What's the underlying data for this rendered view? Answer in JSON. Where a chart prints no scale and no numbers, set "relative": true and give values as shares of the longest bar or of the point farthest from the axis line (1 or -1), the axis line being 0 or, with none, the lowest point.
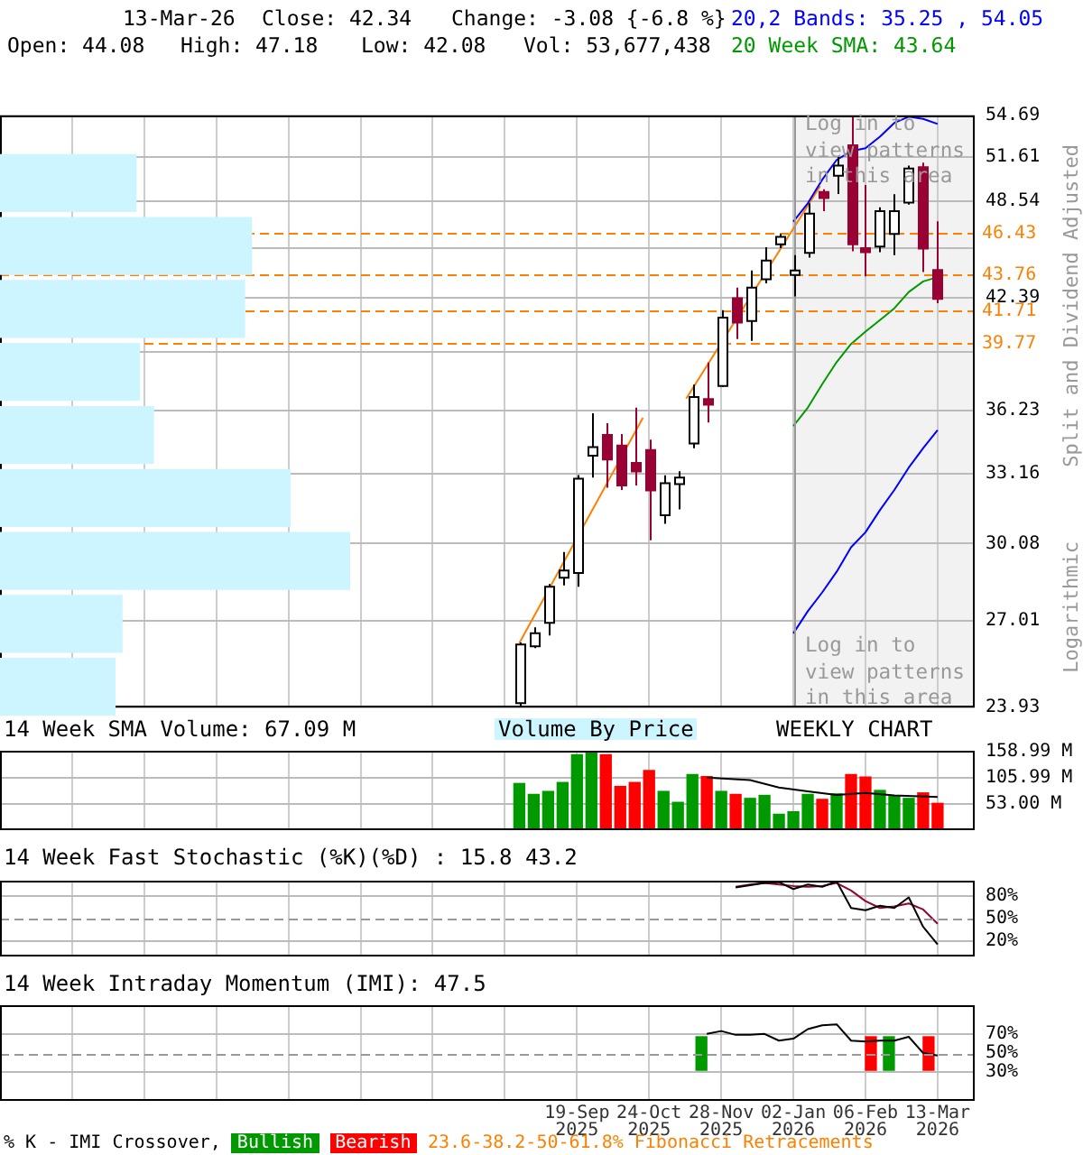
{
  "chart_data": [
    {
      "type": "candlestick",
      "ylabel": "Split and Dividend Adjusted",
      "annotations": [
        "13-Mar-26",
        "Close: 42.34",
        "Change: -3.08 {-6.8 %}",
        "Open: 44.08",
        "High: 47.18",
        "Low: 42.08",
        "Vol: 53,677,438",
        "WEEKLY CHART",
        "Log in to view patterns in this area",
        "Log in to view patterns in this area",
        "Logarithmic",
        "23.6-38.2-50-61.8% Fibonacci Retracements",
        "Volume By Price"
      ],
      "x": [
        "2025-08-22",
        "2025-08-29",
        "2025-09-05",
        "2025-09-12",
        "2025-09-19",
        "2025-09-26",
        "2025-10-03",
        "2025-10-10",
        "2025-10-17",
        "2025-10-24",
        "2025-10-31",
        "2025-11-07",
        "2025-11-14",
        "2025-11-21",
        "2025-11-28",
        "2025-12-05",
        "2025-12-12",
        "2025-12-19",
        "2025-12-26",
        "2026-01-02",
        "2026-01-09",
        "2026-01-16",
        "2026-01-23",
        "2026-01-30",
        "2026-02-06",
        "2026-02-13",
        "2026-02-20",
        "2026-02-27",
        "2026-03-06",
        "2026-03-13"
      ],
      "ohlc": [
        [
          24.07,
          26.2,
          23.95,
          26.13
        ],
        [
          26.06,
          26.76,
          26.0,
          26.54
        ],
        [
          26.93,
          28.43,
          26.46,
          28.32
        ],
        [
          28.68,
          29.73,
          28.38,
          28.97
        ],
        [
          28.87,
          33.1,
          28.32,
          32.94
        ],
        [
          34.01,
          36.08,
          32.99,
          34.42
        ],
        [
          35.01,
          35.59,
          32.52,
          33.83
        ],
        [
          34.5,
          35.05,
          32.42,
          32.63
        ],
        [
          33.67,
          36.37,
          32.63,
          33.27
        ],
        [
          34.28,
          34.78,
          30.22,
          32.4
        ],
        [
          31.3,
          33.09,
          30.92,
          32.73
        ],
        [
          32.69,
          33.28,
          31.55,
          32.99
        ],
        [
          34.59,
          37.56,
          34.37,
          36.91
        ],
        [
          36.81,
          38.73,
          35.62,
          36.52
        ],
        [
          37.49,
          41.67,
          37.44,
          41.24
        ],
        [
          42.37,
          43.0,
          40.03,
          40.96
        ],
        [
          41.05,
          44.05,
          39.93,
          43.0
        ],
        [
          43.51,
          45.5,
          43.27,
          44.66
        ],
        [
          45.69,
          46.35,
          45.44,
          46.16
        ],
        [
          43.77,
          45.0,
          42.48,
          44.05
        ],
        [
          45.15,
          48.38,
          44.85,
          47.68
        ],
        [
          49.15,
          49.33,
          47.85,
          48.73
        ],
        [
          50.28,
          51.61,
          49.01,
          50.99
        ],
        [
          52.46,
          54.63,
          45.24,
          45.69
        ],
        [
          45.44,
          49.64,
          43.69,
          45.19
        ],
        [
          45.55,
          48.11,
          45.19,
          47.85
        ],
        [
          46.35,
          49.0,
          45.0,
          47.85
        ],
        [
          48.43,
          50.99,
          48.29,
          50.78
        ],
        [
          50.88,
          51.2,
          43.95,
          45.42
        ],
        [
          44.08,
          47.18,
          42.08,
          42.34
        ]
      ],
      "series": [
        {
          "type": "line",
          "name": "20,2 Bands: 35.25 , 54.05",
          "color": "#0000ff",
          "values": [
            null,
            null,
            null,
            null,
            null,
            null,
            null,
            null,
            null,
            null,
            null,
            null,
            null,
            null,
            null,
            null,
            null,
            null,
            null,
            47.16,
            48.38,
            50.0,
            51.4,
            52.03,
            52.25,
            53.1,
            54.13,
            54.6,
            54.43,
            54.05
          ]
        },
        {
          "type": "line",
          "color": "#0000ff",
          "values": [
            null,
            null,
            null,
            null,
            null,
            null,
            null,
            null,
            null,
            null,
            null,
            null,
            null,
            null,
            null,
            null,
            null,
            null,
            null,
            26.54,
            27.37,
            28.1,
            28.92,
            29.93,
            30.56,
            31.52,
            32.42,
            33.45,
            34.37,
            35.25
          ]
        },
        {
          "type": "line",
          "name": "20 Week SMA: 43.64",
          "color": "#009900",
          "values": [
            null,
            null,
            null,
            null,
            null,
            null,
            null,
            null,
            null,
            null,
            null,
            null,
            null,
            null,
            null,
            null,
            null,
            null,
            null,
            35.45,
            36.37,
            37.58,
            38.76,
            39.75,
            40.44,
            41.1,
            41.78,
            42.74,
            43.38,
            43.64
          ]
        },
        {
          "type": "line",
          "color": "#ff8000",
          "x": [
            "2025-08-22",
            "2025-10-21"
          ],
          "values": [
            26.18,
            35.86
          ]
        },
        {
          "type": "line",
          "color": "#ff8000",
          "x": [
            "2025-11-11",
            "2026-01-15"
          ],
          "values": [
            36.83,
            49.56
          ]
        }
      ],
      "xlim": [
        "2024-12-13",
        "2026-03-31"
      ],
      "xticks": [
        {
          "value": "2025-01-17",
          "label": null
        },
        {
          "value": "2025-02-21",
          "label": null
        },
        {
          "value": "2025-03-28",
          "label": null
        },
        {
          "value": "2025-05-02",
          "label": null
        },
        {
          "value": "2025-06-06",
          "label": null
        },
        {
          "value": "2025-07-11",
          "label": null
        },
        {
          "value": "2025-08-15",
          "label": null
        },
        {
          "value": "2025-09-19",
          "label": null
        },
        {
          "value": "2025-10-24",
          "label": null
        },
        {
          "value": "2025-11-28",
          "label": null
        },
        {
          "value": "2026-01-02",
          "label": null
        },
        {
          "value": "2026-02-06",
          "label": null
        },
        {
          "value": "2026-03-13",
          "label": null
        }
      ],
      "ylim": [
        23.93,
        54.69
      ],
      "yticks": [
        23.93,
        27.01,
        30.08,
        33.16,
        36.23,
        {
          "value": 39.31,
          "label": null
        },
        42.39,
        {
          "value": 45.46,
          "label": null
        },
        48.54,
        51.61,
        54.69
      ],
      "log": true,
      "grid": true,
      "tick_labels": "y",
      "legend": "top right",
      "ref_lines": [
        {
          "axis": "y",
          "value": 46.43,
          "label": "46.43",
          "color": "#ff8000",
          "line_style": "dashed"
        },
        {
          "axis": "y",
          "value": 43.76,
          "label": "43.76",
          "color": "#ff8000",
          "line_style": "dashed"
        },
        {
          "axis": "y",
          "value": 41.71,
          "label": "41.71",
          "color": "#ff8000",
          "line_style": "dashed"
        },
        {
          "axis": "y",
          "value": 39.77,
          "label": "39.77",
          "color": "#ff8000",
          "line_style": "dashed"
        },
        {
          "axis": "x",
          "value": "2026-01-02",
          "color": "#999999",
          "line_style": "solid"
        }
      ],
      "bands": [
        {
          "axis": "x",
          "from": "2026-01-02",
          "to": "2026-03-31",
          "color": "#f2f2f2"
        }
      ]
    },
    {
      "type": "bar",
      "orientation": "horizontal",
      "relative": true,
      "categories": [
        null,
        null,
        null,
        null,
        null,
        null,
        null,
        null,
        null
      ],
      "values": [
        0.39,
        0.72,
        0.7,
        0.4,
        0.44,
        0.83,
        1,
        0.35,
        0.33
      ],
      "color": "#ccf5ff"
    },
    {
      "type": "bar",
      "title": "14 Week SMA Volume: 67.09 M",
      "x": [
        "2025-08-22",
        "2025-08-29",
        "2025-09-05",
        "2025-09-12",
        "2025-09-19",
        "2025-09-26",
        "2025-10-03",
        "2025-10-10",
        "2025-10-17",
        "2025-10-24",
        "2025-10-31",
        "2025-11-07",
        "2025-11-14",
        "2025-11-21",
        "2025-11-28",
        "2025-12-05",
        "2025-12-12",
        "2025-12-19",
        "2025-12-26",
        "2026-01-02",
        "2026-01-09",
        "2026-01-16",
        "2026-01-23",
        "2026-01-30",
        "2026-02-06",
        "2026-02-13",
        "2026-02-20",
        "2026-02-27",
        "2026-03-06",
        "2026-03-13"
      ],
      "series": [
        {
          "type": "bar",
          "colors": [
            "#009900",
            "#009900",
            "#009900",
            "#009900",
            "#009900",
            "#009900",
            "#ff0000",
            "#ff0000",
            "#ff0000",
            "#ff0000",
            "#009900",
            "#009900",
            "#009900",
            "#ff0000",
            "#009900",
            "#ff0000",
            "#009900",
            "#009900",
            "#009900",
            "#009900",
            "#009900",
            "#ff0000",
            "#009900",
            "#ff0000",
            "#ff0000",
            "#009900",
            "#009900",
            "#009900",
            "#ff0000",
            "#ff0000"
          ],
          "values": [
            94,
            72,
            78,
            96,
            152,
            159,
            152,
            88,
            96,
            120,
            78,
            56,
            112,
            108,
            78,
            72,
            64,
            70,
            32,
            37,
            72,
            62,
            73,
            112,
            107,
            80,
            68,
            64,
            75,
            54
          ]
        },
        {
          "type": "line",
          "color": "#000000",
          "x": [
            "2025-11-21",
            "2025-12-12",
            "2025-12-26",
            "2026-01-09",
            "2026-01-23",
            "2026-02-06",
            "2026-02-20",
            "2026-03-13"
          ],
          "values": [
            106,
            101,
            86,
            78,
            71,
            75,
            70,
            67
          ]
        }
      ],
      "xlim": [
        "2024-12-13",
        "2026-03-31"
      ],
      "xticks": [
        {
          "value": "2025-01-17",
          "label": null
        },
        {
          "value": "2025-02-21",
          "label": null
        },
        {
          "value": "2025-03-28",
          "label": null
        },
        {
          "value": "2025-05-02",
          "label": null
        },
        {
          "value": "2025-06-06",
          "label": null
        },
        {
          "value": "2025-07-11",
          "label": null
        },
        {
          "value": "2025-08-15",
          "label": null
        },
        {
          "value": "2025-09-19",
          "label": null
        },
        {
          "value": "2025-10-24",
          "label": null
        },
        {
          "value": "2025-11-28",
          "label": null
        },
        {
          "value": "2026-01-02",
          "label": null
        },
        {
          "value": "2026-02-06",
          "label": null
        },
        {
          "value": "2026-03-13",
          "label": null
        }
      ],
      "ylim": [
        0,
        160
      ],
      "yticks": [
        {
          "value": 53,
          "label": "53.00 M"
        },
        {
          "value": 105.99,
          "label": "105.99 M"
        },
        {
          "value": 158.99,
          "label": "158.99 M"
        }
      ],
      "grid": true,
      "tick_labels": "y"
    },
    {
      "type": "line",
      "title": "14 Week Fast Stochastic (%K)(%D) : 15.8 43.2",
      "series": [
        {
          "color": "#000000",
          "x": [
            "2025-12-05",
            "2025-12-12",
            "2025-12-19",
            "2025-12-26",
            "2026-01-02",
            "2026-01-09",
            "2026-01-16",
            "2026-01-23",
            "2026-01-30",
            "2026-02-06",
            "2026-02-13",
            "2026-02-20",
            "2026-02-27",
            "2026-03-06",
            "2026-03-13"
          ],
          "values": [
            91,
            94,
            97,
            98,
            89,
            95,
            92,
            99,
            64,
            61,
            67,
            64,
            78,
            39,
            15.8
          ]
        },
        {
          "color": "#990033",
          "x": [
            "2025-12-05",
            "2025-12-12",
            "2025-12-19",
            "2025-12-26",
            "2026-01-02",
            "2026-01-09",
            "2026-01-16",
            "2026-01-23",
            "2026-01-30",
            "2026-02-06",
            "2026-02-13",
            "2026-02-20",
            "2026-02-27",
            "2026-03-06",
            "2026-03-13"
          ],
          "values": [
            92,
            95,
            97,
            95,
            93,
            92,
            93,
            97,
            87,
            73,
            64,
            66,
            70,
            62,
            43.2
          ]
        }
      ],
      "xlim": [
        "2024-12-13",
        "2026-03-31"
      ],
      "xticks": [
        {
          "value": "2025-01-17",
          "label": null
        },
        {
          "value": "2025-02-21",
          "label": null
        },
        {
          "value": "2025-03-28",
          "label": null
        },
        {
          "value": "2025-05-02",
          "label": null
        },
        {
          "value": "2025-06-06",
          "label": null
        },
        {
          "value": "2025-07-11",
          "label": null
        },
        {
          "value": "2025-08-15",
          "label": null
        },
        {
          "value": "2025-09-19",
          "label": null
        },
        {
          "value": "2025-10-24",
          "label": null
        },
        {
          "value": "2025-11-28",
          "label": null
        },
        {
          "value": "2026-01-02",
          "label": null
        },
        {
          "value": "2026-02-06",
          "label": null
        },
        {
          "value": "2026-03-13",
          "label": null
        }
      ],
      "ylim": [
        0,
        100
      ],
      "yticks": [
        {
          "value": 20,
          "label": "20%"
        },
        {
          "value": 50,
          "label": "50%"
        },
        {
          "value": 80,
          "label": "80%"
        }
      ],
      "ref_lines": [
        {
          "axis": "y",
          "value": 50,
          "color": "#999999",
          "line_style": "dashed"
        }
      ],
      "grid": true,
      "tick_labels": "y"
    },
    {
      "type": "line",
      "title": "14 Week Intraday Momentum (IMI): 47.5",
      "annotations": [
        "% K - IMI Crossover,"
      ],
      "series": [
        {
          "type": "line",
          "color": "#000000",
          "x": [
            "2025-11-21",
            "2025-11-28",
            "2025-12-05",
            "2025-12-12",
            "2025-12-19",
            "2025-12-26",
            "2026-01-02",
            "2026-01-09",
            "2026-01-16",
            "2026-01-23",
            "2026-01-30",
            "2026-02-06",
            "2026-02-13",
            "2026-02-20",
            "2026-02-27",
            "2026-03-06",
            "2026-03-13"
          ],
          "values": [
            70,
            73,
            69,
            69,
            70,
            63,
            65,
            75,
            79,
            80,
            63,
            62,
            63,
            63,
            67,
            50,
            47.5
          ]
        },
        {
          "type": "bar",
          "name": "Bullish",
          "color": "#009900",
          "x": [
            "2025-11-21",
            "2026-02-20"
          ],
          "base": [
            32,
            32
          ],
          "values": [
            35,
            35
          ]
        },
        {
          "type": "bar",
          "name": "Bearish",
          "color": "#ff0000",
          "x": [
            "2026-02-06",
            "2026-03-06"
          ],
          "base": [
            32,
            32
          ],
          "values": [
            35,
            35
          ]
        }
      ],
      "xlim": [
        "2024-12-13",
        "2026-03-31"
      ],
      "xticks": [
        {
          "value": "2025-01-17",
          "label": null
        },
        {
          "value": "2025-02-21",
          "label": null
        },
        {
          "value": "2025-03-28",
          "label": null
        },
        {
          "value": "2025-05-02",
          "label": null
        },
        {
          "value": "2025-06-06",
          "label": null
        },
        {
          "value": "2025-07-11",
          "label": null
        },
        {
          "value": "2025-08-15",
          "label": null
        },
        {
          "value": "2025-09-19",
          "label": "19-Sep 2025"
        },
        {
          "value": "2025-10-24",
          "label": "24-Oct 2025"
        },
        {
          "value": "2025-11-28",
          "label": "28-Nov 2025"
        },
        {
          "value": "2026-01-02",
          "label": "02-Jan 2026"
        },
        {
          "value": "2026-02-06",
          "label": "06-Feb 2026"
        },
        {
          "value": "2026-03-13",
          "label": "13-Mar 2026"
        }
      ],
      "ylim": [
        0,
        100
      ],
      "yticks": [
        {
          "value": 30,
          "label": "30%"
        },
        {
          "value": 50,
          "label": "50%"
        },
        {
          "value": 70,
          "label": "70%"
        }
      ],
      "ref_lines": [
        {
          "axis": "y",
          "value": 50,
          "color": "#999999",
          "line_style": "dashed"
        }
      ],
      "grid": true,
      "legend": "bottom"
    }
  ]
}
